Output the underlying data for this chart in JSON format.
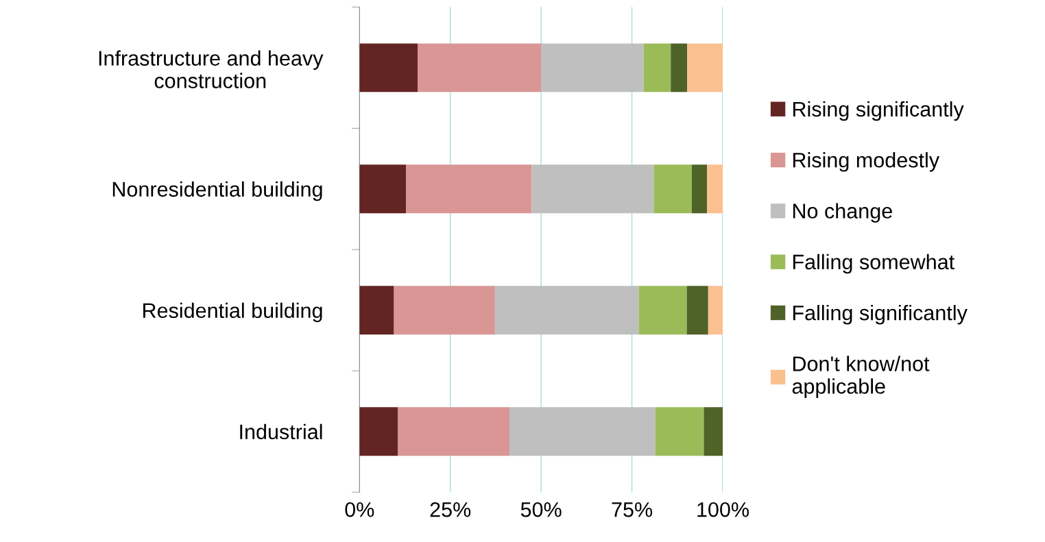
{
  "chart_data": {
    "type": "bar",
    "orientation": "horizontal",
    "stacked": true,
    "categories": [
      "Infrastructure and heavy\nconstruction",
      "Nonresidential building",
      "Residential building",
      "Industrial"
    ],
    "series": [
      {
        "name": "Rising significantly",
        "color": "#632523",
        "values": [
          16,
          12.8,
          9.5,
          10.6
        ]
      },
      {
        "name": "Rising modestly",
        "color": "#d99694",
        "values": [
          34,
          34.6,
          27.8,
          30.7
        ]
      },
      {
        "name": "No change",
        "color": "#bfbfbf",
        "values": [
          28.2,
          33.6,
          39.6,
          40.1
        ]
      },
      {
        "name": "Falling somewhat",
        "color": "#9bbb59",
        "values": [
          7.5,
          10.5,
          13.2,
          13.4
        ]
      },
      {
        "name": "Falling significantly",
        "color": "#4f6228",
        "values": [
          4.5,
          4.2,
          5.9,
          5.2
        ]
      },
      {
        "name": "Don't know/not\napplicable",
        "color": "#fac090",
        "values": [
          9.8,
          4.3,
          4.0,
          0
        ]
      }
    ],
    "xlim": [
      0,
      100
    ],
    "xticks": [
      {
        "value": 0,
        "label": "0%"
      },
      {
        "value": 25,
        "label": "25%"
      },
      {
        "value": 50,
        "label": "50%"
      },
      {
        "value": 75,
        "label": "75%"
      },
      {
        "value": 100,
        "label": "100%"
      }
    ],
    "grid": "x",
    "legend": "right"
  }
}
